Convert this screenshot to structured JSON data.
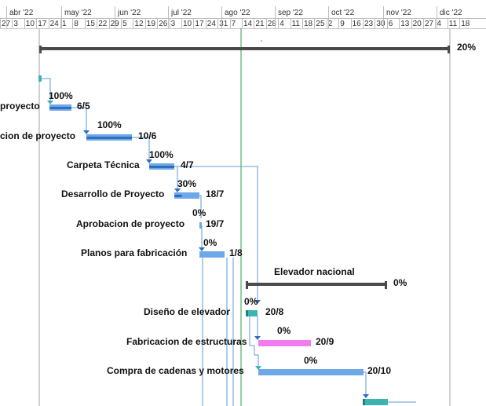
{
  "timeline": {
    "months": [
      "abr '22",
      "may '22",
      "jun '22",
      "jul '22",
      "ago '22",
      "sep '22",
      "oct '22",
      "nov '22",
      "dic '22"
    ],
    "days": [
      "27",
      "3",
      "10",
      "17",
      "24",
      "1",
      "8",
      "15",
      "22",
      "29",
      "5",
      "12",
      "19",
      "26",
      "3",
      "10",
      "17",
      "24",
      "31",
      "7",
      "14",
      "21",
      "28",
      "4",
      "11",
      "18",
      "25",
      "2",
      "9",
      "16",
      "23",
      "30",
      "6",
      "13",
      "20",
      "27",
      "4",
      "11",
      "18"
    ]
  },
  "project_summary": {
    "pct": "20%"
  },
  "tasks": [
    {
      "id": "t1",
      "label": "proyecto",
      "pct": "100%",
      "end": "6/5",
      "color": "#4a90e2"
    },
    {
      "id": "t2",
      "label": "cion de proyecto",
      "pct": "100%",
      "end": "10/6",
      "color": "#4a90e2"
    },
    {
      "id": "t3",
      "label": "Carpeta Técnica",
      "pct": "100%",
      "end": "4/7",
      "color": "#4a90e2"
    },
    {
      "id": "t4",
      "label": "Desarrollo de Proyecto",
      "pct": "30%",
      "end": "18/7",
      "color": "#4a90e2"
    },
    {
      "id": "t5",
      "label": "Aprobacion de proyecto",
      "pct": "0%",
      "end": "19/7",
      "color": "#4a90e2"
    },
    {
      "id": "t6",
      "label": "Planos para fabricación",
      "pct": "0%",
      "end": "1/8",
      "color": "#4a90e2"
    }
  ],
  "group": {
    "label": "Elevador nacional",
    "pct": "0%"
  },
  "subtasks": [
    {
      "id": "s1",
      "label": "Diseño de elevador",
      "pct": "0%",
      "end": "20/8",
      "color": "#3ab5b0"
    },
    {
      "id": "s2",
      "label": "Fabricacion de estructuras",
      "pct": "0%",
      "end": "20/9",
      "color": "#e64ce6"
    },
    {
      "id": "s3",
      "label": "Compra de cadenas y motores",
      "pct": "0%",
      "end": "20/10",
      "color": "#5b9bd5"
    }
  ],
  "colors": {
    "bar_blue": "#6fa8e6",
    "bar_blue_dark": "#2f6fc0",
    "teal": "#3ab5b0",
    "magenta": "#f07cf0",
    "summary": "#4a4a4a",
    "today_line": "#2e9e4a",
    "connector": "#5b9bd5"
  }
}
